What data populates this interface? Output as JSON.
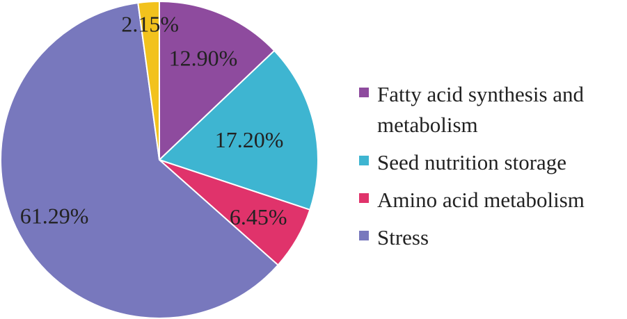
{
  "chart_data": {
    "type": "pie",
    "title": "",
    "slices": [
      {
        "name": "Fatty acid synthesis and metabolism",
        "value": 12.9,
        "label": "12.90%",
        "color": "#8e4b9e"
      },
      {
        "name": "Seed nutrition storage",
        "value": 17.2,
        "label": "17.20%",
        "color": "#3eb5d1"
      },
      {
        "name": "Amino acid metabolism",
        "value": 6.45,
        "label": "6.45%",
        "color": "#e0336b"
      },
      {
        "name": "Stress",
        "value": 61.29,
        "label": "61.29%",
        "color": "#7878bd"
      },
      {
        "name": "",
        "value": 2.15,
        "label": "2.15%",
        "color": "#f2c21d"
      }
    ],
    "legend": [
      {
        "text": "Fatty acid synthesis and metabolism",
        "color": "#8e4b9e"
      },
      {
        "text": "Seed nutrition storage",
        "color": "#3eb5d1"
      },
      {
        "text": "Amino acid metabolism",
        "color": "#e0336b"
      },
      {
        "text": "Stress",
        "color": "#7878bd"
      }
    ],
    "start": "top",
    "direction": "clockwise",
    "legend_position": "right"
  }
}
